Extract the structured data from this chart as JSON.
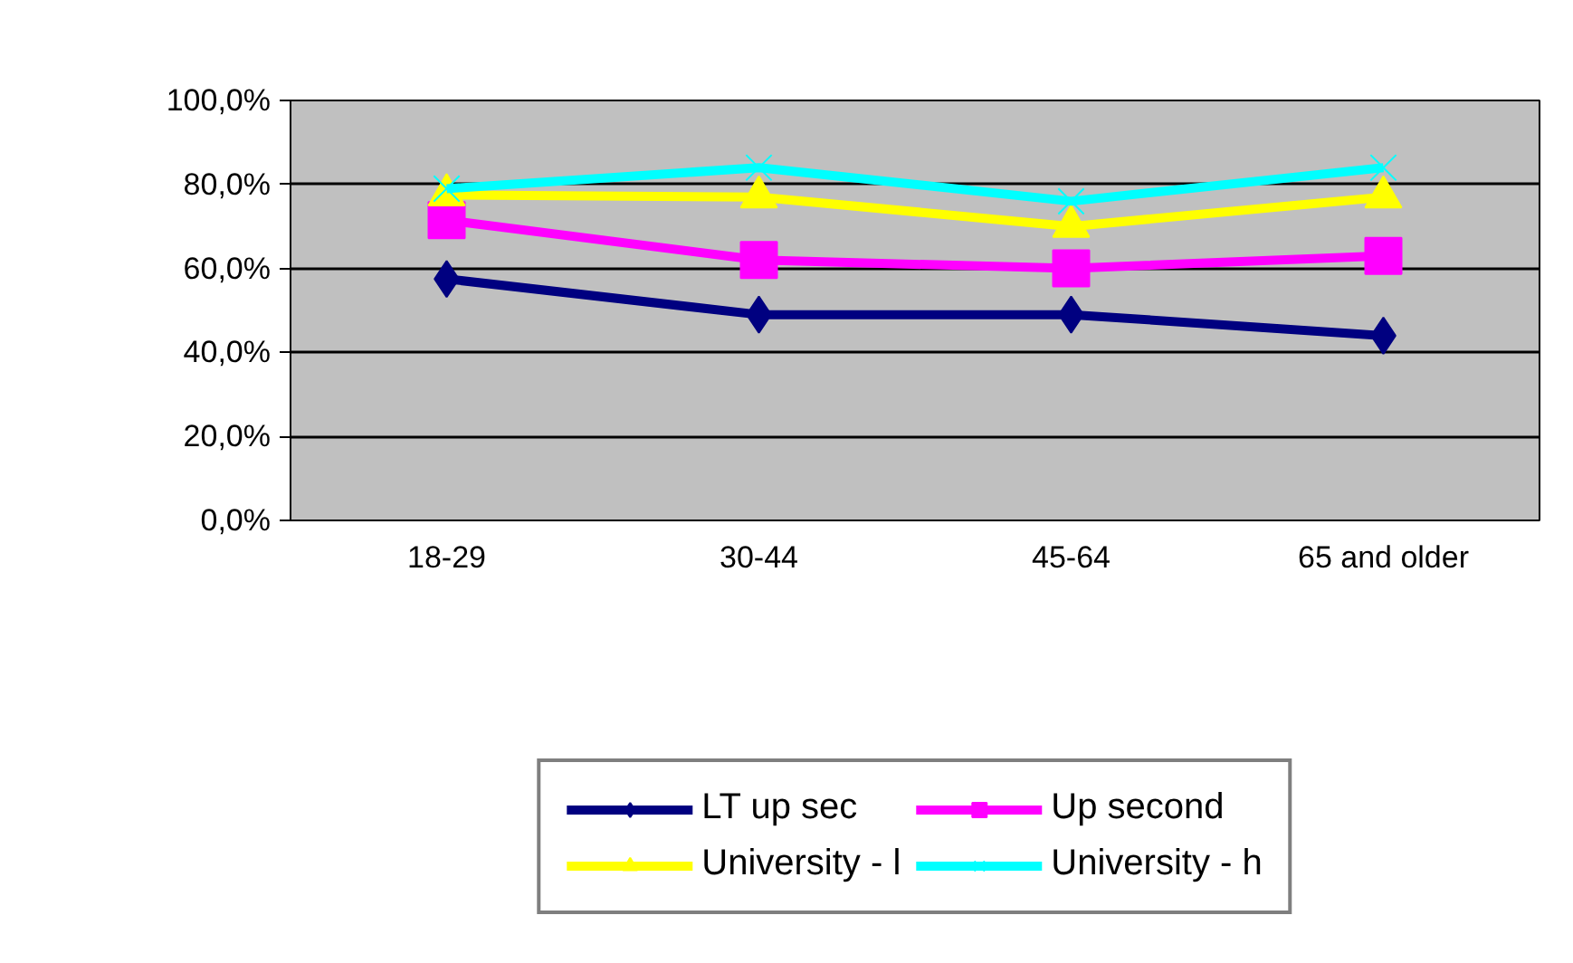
{
  "chart_data": {
    "type": "line",
    "categories": [
      "18-29",
      "30-44",
      "45-64",
      "65 and older"
    ],
    "series": [
      {
        "name": "LT up sec",
        "color": "#000080",
        "marker": "diamond",
        "values": [
          57.5,
          49,
          49,
          44
        ]
      },
      {
        "name": "Up second",
        "color": "#ff00ff",
        "marker": "square",
        "values": [
          71.5,
          62,
          60,
          63
        ]
      },
      {
        "name": "University - l",
        "color": "#ffff00",
        "marker": "triangle",
        "values": [
          77.5,
          77,
          70,
          77
        ]
      },
      {
        "name": "University - h",
        "color": "#00ffff",
        "marker": "cross",
        "values": [
          79,
          84,
          76,
          84
        ]
      }
    ],
    "ylim": [
      0,
      100
    ],
    "yticks": [
      {
        "value": 0,
        "label": "0,0%"
      },
      {
        "value": 20,
        "label": "20,0%"
      },
      {
        "value": 40,
        "label": "40,0%"
      },
      {
        "value": 60,
        "label": "60,0%"
      },
      {
        "value": 80,
        "label": "80,0%"
      },
      {
        "value": 100,
        "label": "100,0%"
      }
    ],
    "grid": "y",
    "legend": "bottom",
    "line_style": "solid"
  }
}
